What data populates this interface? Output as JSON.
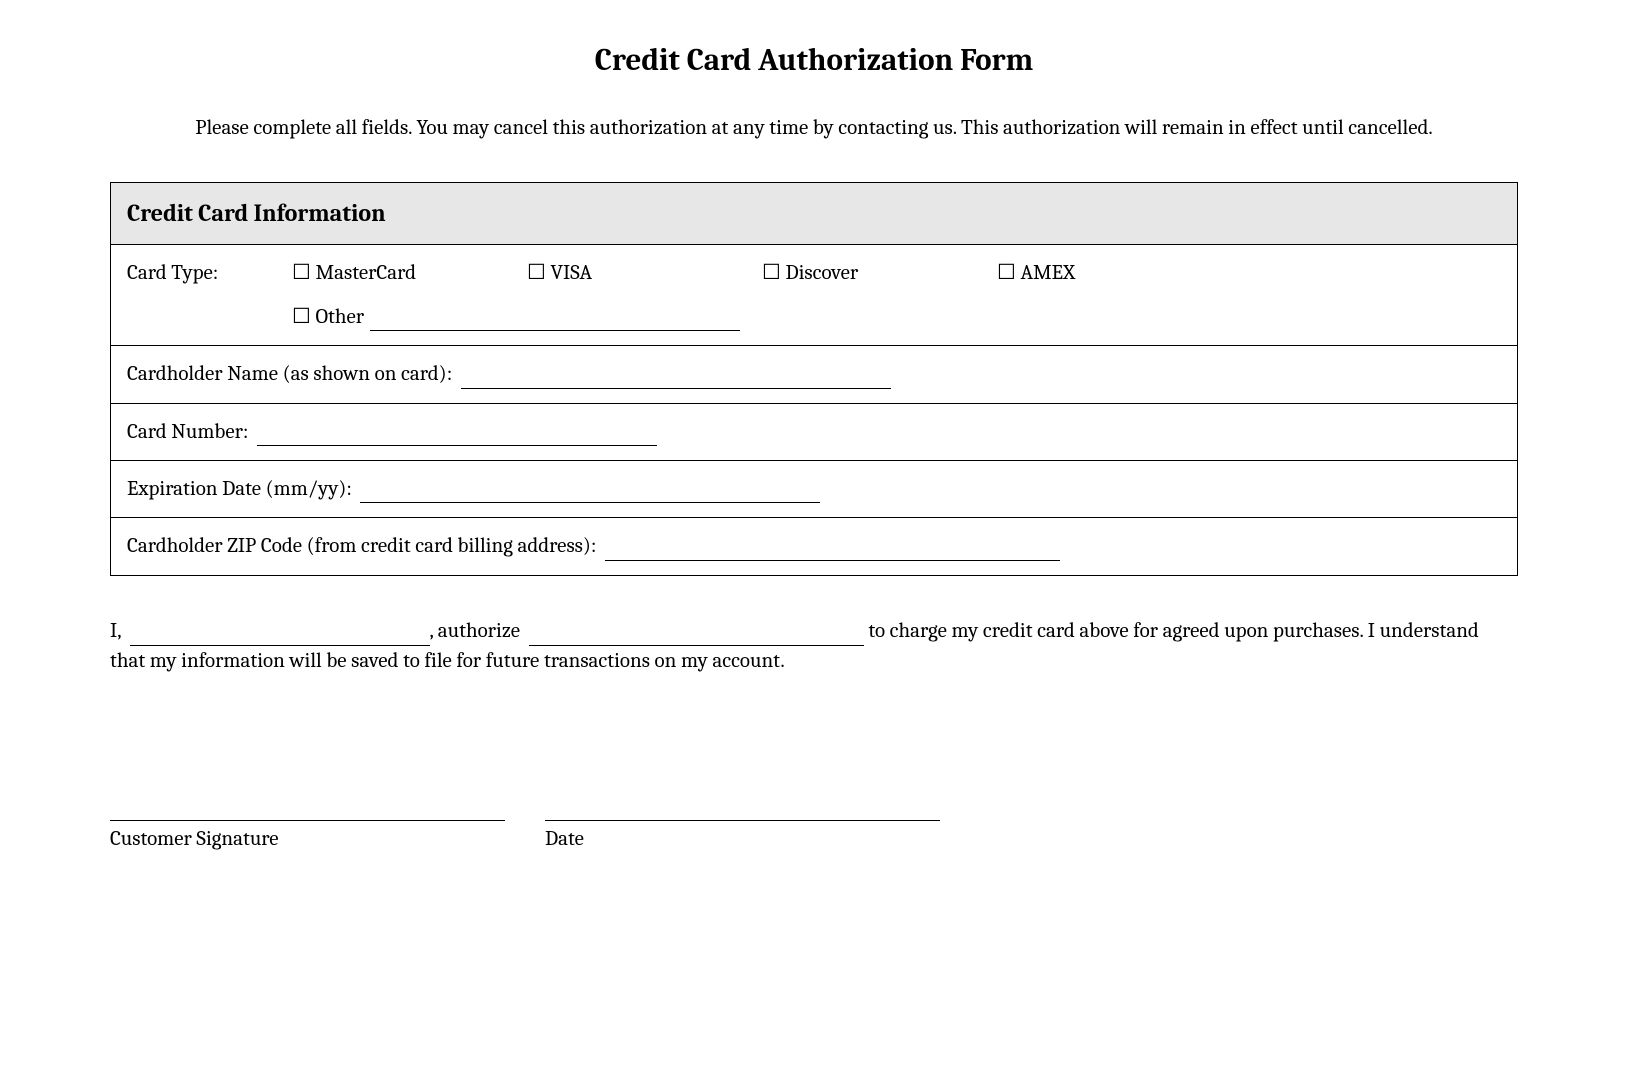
{
  "title": "Credit Card Authorization Form",
  "intro": "Please complete all fields. You may cancel this authorization at any time by contacting us. This authorization will remain in effect until cancelled.",
  "section_header": "Credit Card Information",
  "card_type": {
    "label": "Card Type:",
    "options": {
      "mastercard": "☐ MasterCard",
      "visa": "☐ VISA",
      "discover": "☐ Discover",
      "amex": "☐ AMEX",
      "other": "☐ Other"
    }
  },
  "fields": {
    "cardholder_name": "Cardholder Name (as shown on card):",
    "card_number": "Card Number:",
    "expiration": "Expiration Date (mm/yy):",
    "zip": "Cardholder ZIP Code (from credit card billing address):"
  },
  "auth": {
    "p1": "I,",
    "p2": ", authorize",
    "p3": "to charge my credit card above for agreed upon purchases. I understand that my information will be saved to file for future transactions on my account."
  },
  "signature": {
    "customer": "Customer Signature",
    "date": "Date"
  },
  "colors": {
    "text": "#000000",
    "background": "#ffffff",
    "header_bg": "#e7e7e7",
    "border": "#000000"
  },
  "fonts": {
    "title_size": 31,
    "body_size": 21,
    "section_size": 24,
    "family": "serif"
  }
}
